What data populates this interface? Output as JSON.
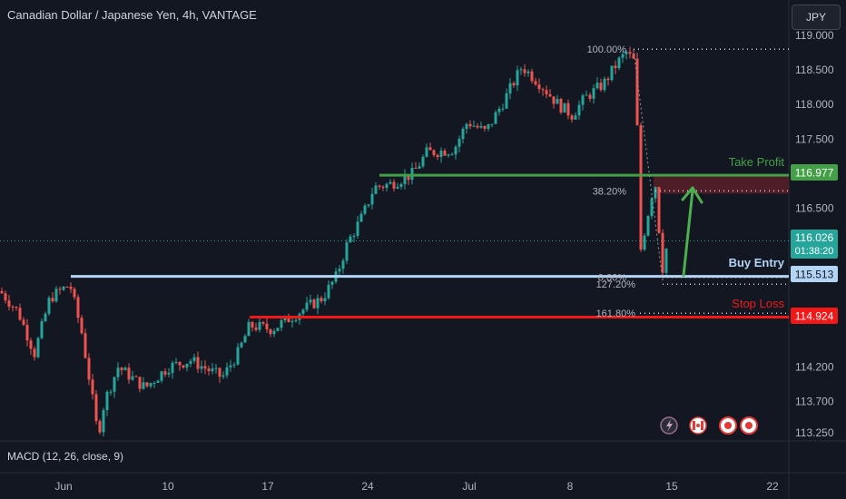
{
  "header": {
    "title": "Canadian Dollar / Japanese Yen, 4h, VANTAGE",
    "currency_button": "JPY"
  },
  "indicator": {
    "label": "MACD (12, 26, close, 9)"
  },
  "colors": {
    "background": "#131722",
    "up": "#26a69a",
    "down": "#ef5350",
    "take_profit": "#43a047",
    "buy_entry": "#b3d4f5",
    "stop_loss": "#f21818",
    "arrow": "#4caf50"
  },
  "price_badges": {
    "take_profit": "116.977",
    "current": "116.026",
    "countdown": "01:38:20",
    "buy_entry": "115.513",
    "stop_loss": "114.924"
  },
  "events_icons": [
    "lightning-icon",
    "canada-flag-icon",
    "japan-flag-icon",
    "japan-flag-icon"
  ],
  "chart_data": {
    "type": "candlestick",
    "title": "Canadian Dollar / Japanese Yen, 4h, VANTAGE",
    "y_axis": {
      "ticks": [
        "119.000",
        "118.500",
        "118.000",
        "117.500",
        "116.500",
        "114.200",
        "113.700",
        "113.250"
      ],
      "range": [
        113.1,
        119.05
      ]
    },
    "x_axis": {
      "ticks": [
        "Jun",
        "10",
        "17",
        "24",
        "Jul",
        "8",
        "15",
        "22"
      ]
    },
    "levels": [
      {
        "name": "Take Profit",
        "value": 116.977
      },
      {
        "name": "Buy Entry",
        "value": 115.513
      },
      {
        "name": "Stop Loss",
        "value": 114.924
      }
    ],
    "fibonacci": [
      {
        "label": "100.00%",
        "value": 118.8
      },
      {
        "label": "38.20%",
        "value": 116.75
      },
      {
        "label": "0.00%",
        "value": 115.5
      },
      {
        "label": "127.20%",
        "value": 115.4
      },
      {
        "label": "161.80%",
        "value": 114.98
      }
    ],
    "current_price": 116.026,
    "anchors": [
      {
        "x": 0,
        "price": 115.3
      },
      {
        "x": 20,
        "price": 115.0
      },
      {
        "x": 38,
        "price": 114.4
      },
      {
        "x": 55,
        "price": 115.2
      },
      {
        "x": 77,
        "price": 115.4
      },
      {
        "x": 90,
        "price": 114.7
      },
      {
        "x": 100,
        "price": 113.9
      },
      {
        "x": 108,
        "price": 113.2
      },
      {
        "x": 115,
        "price": 113.7
      },
      {
        "x": 130,
        "price": 114.2
      },
      {
        "x": 160,
        "price": 113.9
      },
      {
        "x": 185,
        "price": 114.2
      },
      {
        "x": 210,
        "price": 114.3
      },
      {
        "x": 245,
        "price": 114.05
      },
      {
        "x": 262,
        "price": 114.4
      },
      {
        "x": 275,
        "price": 114.8
      },
      {
        "x": 300,
        "price": 114.75
      },
      {
        "x": 330,
        "price": 115.0
      },
      {
        "x": 355,
        "price": 115.2
      },
      {
        "x": 370,
        "price": 115.5
      },
      {
        "x": 383,
        "price": 116.0
      },
      {
        "x": 400,
        "price": 116.4
      },
      {
        "x": 412,
        "price": 116.8
      },
      {
        "x": 430,
        "price": 116.85
      },
      {
        "x": 455,
        "price": 117.0
      },
      {
        "x": 470,
        "price": 117.3
      },
      {
        "x": 500,
        "price": 117.35
      },
      {
        "x": 515,
        "price": 117.75
      },
      {
        "x": 535,
        "price": 117.6
      },
      {
        "x": 555,
        "price": 118.05
      },
      {
        "x": 575,
        "price": 118.55
      },
      {
        "x": 595,
        "price": 118.3
      },
      {
        "x": 615,
        "price": 118.0
      },
      {
        "x": 630,
        "price": 117.85
      },
      {
        "x": 645,
        "price": 118.1
      },
      {
        "x": 665,
        "price": 118.3
      },
      {
        "x": 680,
        "price": 118.6
      },
      {
        "x": 690,
        "price": 118.75
      },
      {
        "x": 700,
        "price": 118.6
      },
      {
        "x": 706,
        "price": 115.9
      },
      {
        "x": 712,
        "price": 116.3
      },
      {
        "x": 718,
        "price": 116.7
      },
      {
        "x": 724,
        "price": 116.9
      },
      {
        "x": 728,
        "price": 115.5
      },
      {
        "x": 736,
        "price": 116.05
      }
    ]
  }
}
